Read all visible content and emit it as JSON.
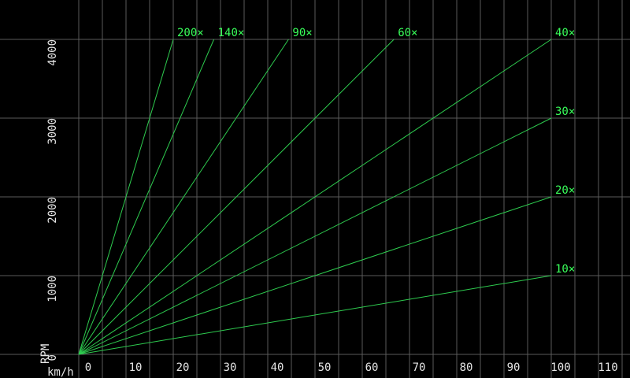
{
  "colors": {
    "background": "#000000",
    "grid": "#5a5a5a",
    "line": "#2ecc4f",
    "series_label": "#39ff5a",
    "text": "#e6e6e6"
  },
  "chart_data": {
    "type": "line",
    "title": "",
    "xlabel": "km/h",
    "ylabel": "RPM",
    "xlim": [
      -1,
      116
    ],
    "ylim": [
      -30,
      4500
    ],
    "grid": true,
    "legend": "none",
    "xticks": [
      0,
      10,
      20,
      30,
      40,
      50,
      60,
      70,
      80,
      90,
      100,
      110
    ],
    "yticks": [
      0,
      1000,
      2000,
      3000,
      4000
    ],
    "series": [
      {
        "name": "10×",
        "ratio": 10,
        "x": [
          0,
          100
        ],
        "y": [
          0,
          1000
        ]
      },
      {
        "name": "20×",
        "ratio": 20,
        "x": [
          0,
          100
        ],
        "y": [
          0,
          2000
        ]
      },
      {
        "name": "30×",
        "ratio": 30,
        "x": [
          0,
          100
        ],
        "y": [
          0,
          3000
        ]
      },
      {
        "name": "40×",
        "ratio": 40,
        "x": [
          0,
          100
        ],
        "y": [
          0,
          4000
        ]
      },
      {
        "name": "60×",
        "ratio": 60,
        "x": [
          0,
          66.7
        ],
        "y": [
          0,
          4000
        ]
      },
      {
        "name": "90×",
        "ratio": 90,
        "x": [
          0,
          44.4
        ],
        "y": [
          0,
          4000
        ]
      },
      {
        "name": "140×",
        "ratio": 140,
        "x": [
          0,
          28.6
        ],
        "y": [
          0,
          4000
        ]
      },
      {
        "name": "200×",
        "ratio": 200,
        "x": [
          0,
          20
        ],
        "y": [
          0,
          4000
        ]
      }
    ]
  }
}
